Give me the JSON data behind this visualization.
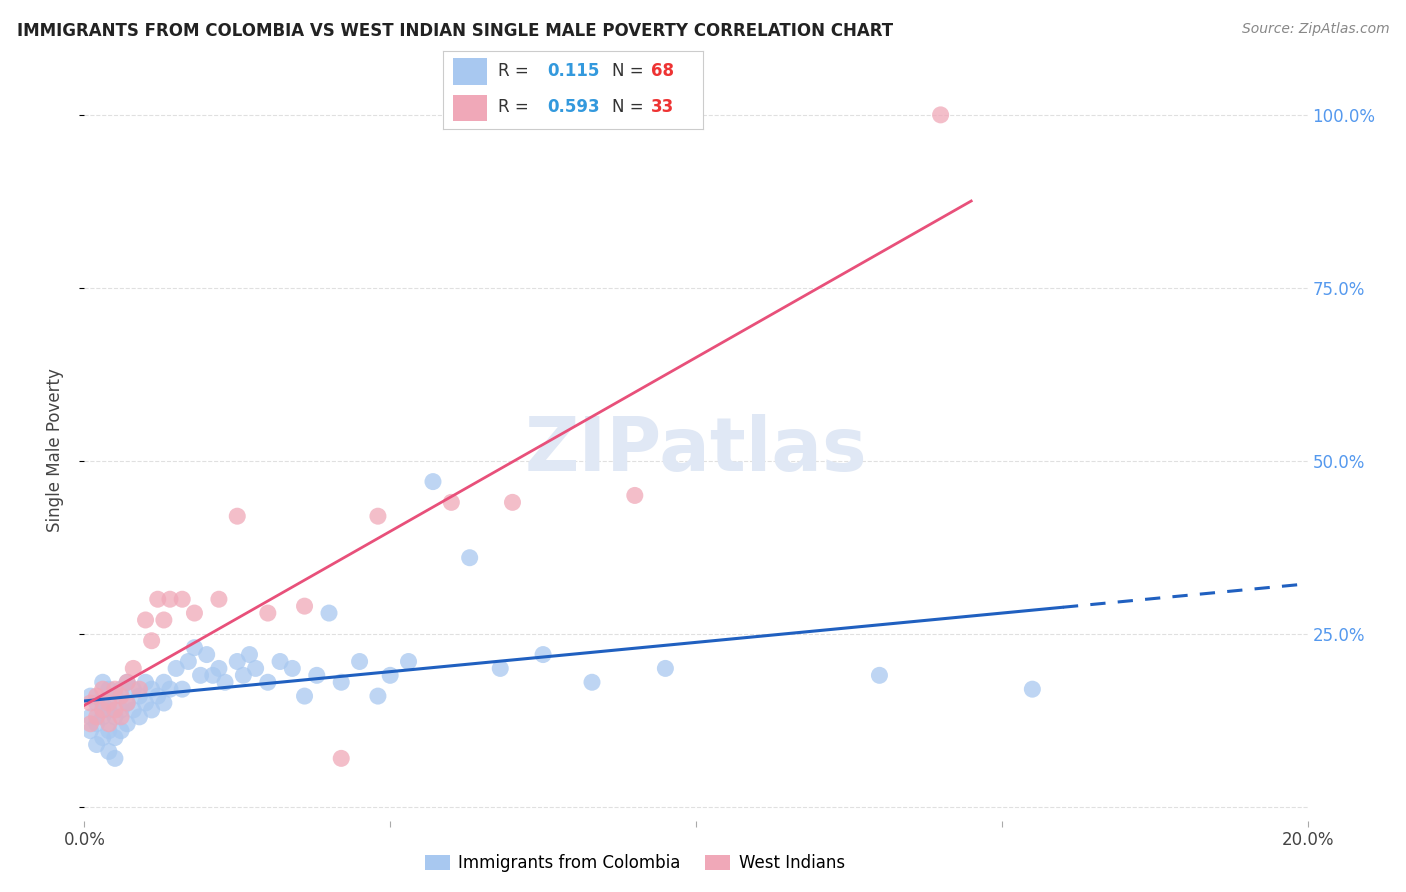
{
  "title": "IMMIGRANTS FROM COLOMBIA VS WEST INDIAN SINGLE MALE POVERTY CORRELATION CHART",
  "source": "Source: ZipAtlas.com",
  "ylabel": "Single Male Poverty",
  "xlim": [
    0.0,
    0.2
  ],
  "ylim": [
    -0.02,
    1.05
  ],
  "colombia_color": "#a8c8f0",
  "west_indian_color": "#f0a8b8",
  "colombia_line_color": "#2060c0",
  "west_indian_line_color": "#e8507a",
  "R_colombia": 0.115,
  "N_colombia": 68,
  "R_west_indian": 0.593,
  "N_west_indian": 33,
  "colombia_x": [
    0.001,
    0.001,
    0.001,
    0.002,
    0.002,
    0.002,
    0.003,
    0.003,
    0.003,
    0.003,
    0.004,
    0.004,
    0.004,
    0.004,
    0.005,
    0.005,
    0.005,
    0.005,
    0.006,
    0.006,
    0.006,
    0.007,
    0.007,
    0.007,
    0.008,
    0.008,
    0.009,
    0.009,
    0.01,
    0.01,
    0.011,
    0.011,
    0.012,
    0.013,
    0.013,
    0.014,
    0.015,
    0.016,
    0.017,
    0.018,
    0.019,
    0.02,
    0.021,
    0.022,
    0.023,
    0.025,
    0.026,
    0.027,
    0.028,
    0.03,
    0.032,
    0.034,
    0.036,
    0.038,
    0.04,
    0.042,
    0.045,
    0.048,
    0.05,
    0.053,
    0.057,
    0.063,
    0.068,
    0.075,
    0.083,
    0.095,
    0.13,
    0.155
  ],
  "colombia_y": [
    0.16,
    0.13,
    0.11,
    0.15,
    0.12,
    0.09,
    0.18,
    0.15,
    0.13,
    0.1,
    0.17,
    0.14,
    0.11,
    0.08,
    0.16,
    0.13,
    0.1,
    0.07,
    0.17,
    0.14,
    0.11,
    0.18,
    0.15,
    0.12,
    0.17,
    0.14,
    0.16,
    0.13,
    0.18,
    0.15,
    0.17,
    0.14,
    0.16,
    0.18,
    0.15,
    0.17,
    0.2,
    0.17,
    0.21,
    0.23,
    0.19,
    0.22,
    0.19,
    0.2,
    0.18,
    0.21,
    0.19,
    0.22,
    0.2,
    0.18,
    0.21,
    0.2,
    0.16,
    0.19,
    0.28,
    0.18,
    0.21,
    0.16,
    0.19,
    0.21,
    0.47,
    0.36,
    0.2,
    0.22,
    0.18,
    0.2,
    0.19,
    0.17
  ],
  "west_indian_x": [
    0.001,
    0.001,
    0.002,
    0.002,
    0.003,
    0.003,
    0.004,
    0.004,
    0.005,
    0.005,
    0.006,
    0.006,
    0.007,
    0.007,
    0.008,
    0.009,
    0.01,
    0.011,
    0.012,
    0.013,
    0.014,
    0.016,
    0.018,
    0.022,
    0.025,
    0.03,
    0.036,
    0.042,
    0.048,
    0.06,
    0.07,
    0.09,
    0.14
  ],
  "west_indian_y": [
    0.15,
    0.12,
    0.16,
    0.13,
    0.17,
    0.14,
    0.15,
    0.12,
    0.17,
    0.14,
    0.16,
    0.13,
    0.18,
    0.15,
    0.2,
    0.17,
    0.27,
    0.24,
    0.3,
    0.27,
    0.3,
    0.3,
    0.28,
    0.3,
    0.42,
    0.28,
    0.29,
    0.07,
    0.42,
    0.44,
    0.44,
    0.45,
    1.0
  ],
  "background_color": "#ffffff",
  "grid_color": "#dddddd",
  "watermark_text": "ZIPatlas",
  "watermark_color": "#e0e8f5",
  "legend_R_color": "#3399dd",
  "legend_N_color": "#ee3333"
}
